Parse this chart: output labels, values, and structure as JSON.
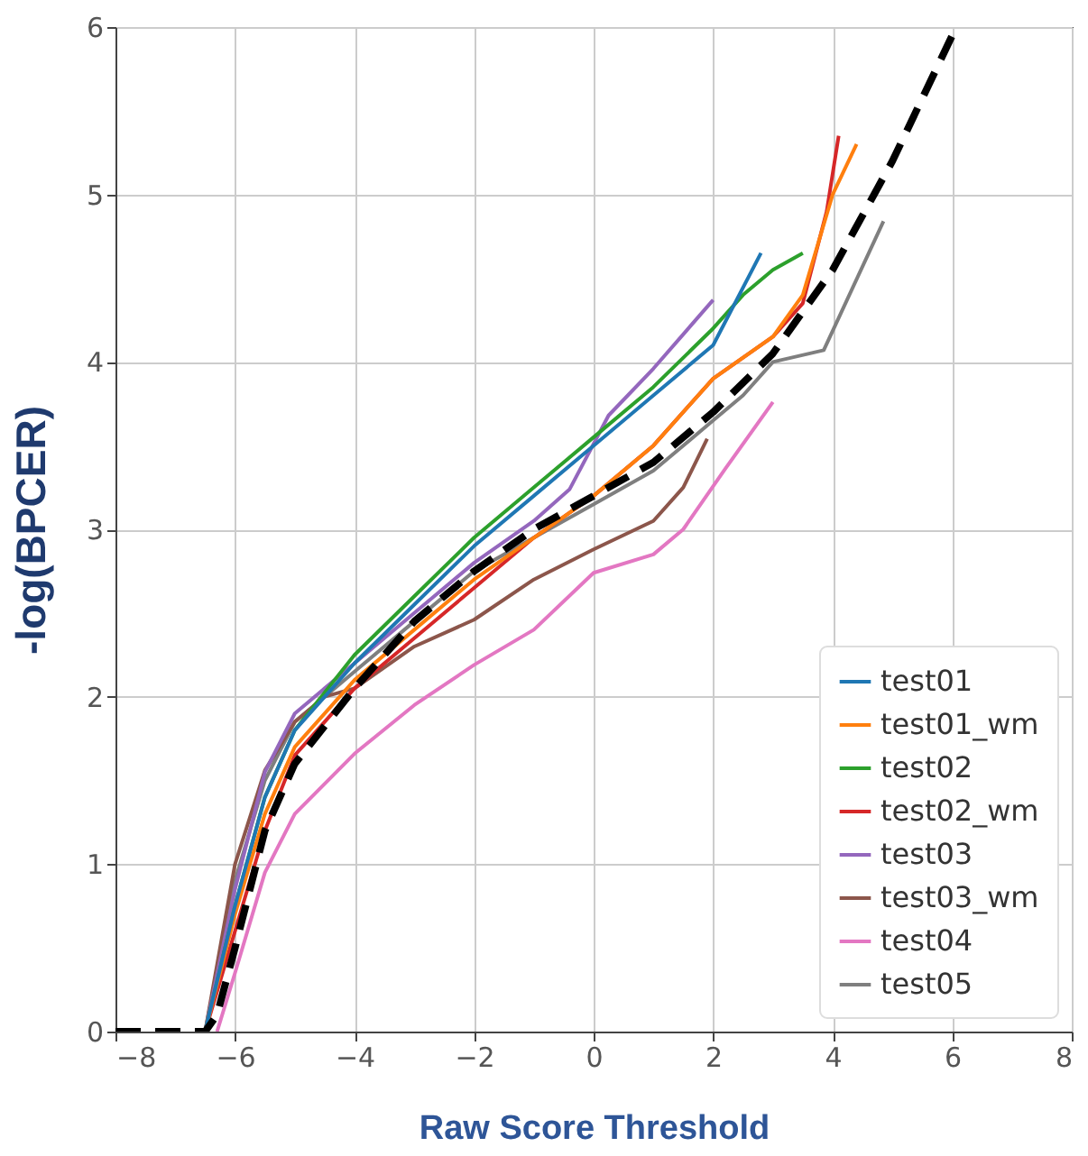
{
  "chart_data": {
    "type": "line",
    "xlabel": "Raw Score Threshold",
    "ylabel": "-log(BPCER)",
    "xlim": [
      -8,
      8
    ],
    "xticks": [
      -8,
      -6,
      -4,
      -2,
      0,
      2,
      4,
      6,
      8
    ],
    "ylim": [
      0,
      6
    ],
    "yticks": [
      0,
      1,
      2,
      3,
      4,
      5,
      6
    ],
    "grid": true,
    "legend": "bottom right",
    "marker": "none",
    "line_style": "solid",
    "series": [
      {
        "name": "test01",
        "color": "#1f77b4",
        "x": [
          -6.5,
          -6,
          -5.5,
          -5,
          -4,
          -3,
          -2,
          -1,
          0,
          1,
          2,
          2.8
        ],
        "values": [
          0,
          0.75,
          1.4,
          1.8,
          2.2,
          2.55,
          2.9,
          3.2,
          3.5,
          3.8,
          4.1,
          4.65
        ]
      },
      {
        "name": "test01_wm",
        "color": "#ff7f0e",
        "x": [
          -6.5,
          -6,
          -5.5,
          -5,
          -4,
          -3,
          -2,
          -1,
          0,
          1,
          2,
          3,
          3.5,
          4,
          4.4
        ],
        "values": [
          0,
          0.7,
          1.3,
          1.7,
          2.1,
          2.4,
          2.7,
          2.95,
          3.2,
          3.5,
          3.9,
          4.15,
          4.4,
          5.0,
          5.3
        ]
      },
      {
        "name": "test02",
        "color": "#2ca02c",
        "x": [
          -6.5,
          -6,
          -5.5,
          -5,
          -4,
          -3,
          -2,
          -1,
          0,
          1,
          2,
          2.5,
          3,
          3.5
        ],
        "values": [
          0,
          0.75,
          1.4,
          1.8,
          2.25,
          2.6,
          2.95,
          3.25,
          3.55,
          3.85,
          4.2,
          4.4,
          4.55,
          4.65
        ]
      },
      {
        "name": "test02_wm",
        "color": "#d62728",
        "x": [
          -6.5,
          -6,
          -5.5,
          -5,
          -4,
          -3,
          -2,
          -1,
          0,
          1,
          2,
          3,
          3.5,
          3.9,
          4.1
        ],
        "values": [
          0,
          0.6,
          1.2,
          1.65,
          2.05,
          2.35,
          2.65,
          2.95,
          3.2,
          3.5,
          3.9,
          4.15,
          4.35,
          4.9,
          5.35
        ]
      },
      {
        "name": "test03",
        "color": "#9467bd",
        "x": [
          -6.5,
          -6,
          -5.5,
          -5,
          -4.5,
          -4,
          -3,
          -2,
          -1,
          -0.4,
          0.25,
          1,
          2
        ],
        "values": [
          0,
          0.85,
          1.55,
          1.9,
          2.05,
          2.2,
          2.5,
          2.8,
          3.05,
          3.24,
          3.68,
          3.96,
          4.37
        ]
      },
      {
        "name": "test03_wm",
        "color": "#8c564b",
        "x": [
          -6.5,
          -6,
          -5.5,
          -5,
          -4.5,
          -4,
          -3,
          -2,
          -1,
          0,
          1,
          1.5,
          1.9
        ],
        "values": [
          0,
          1.0,
          1.56,
          1.85,
          2.0,
          2.05,
          2.3,
          2.46,
          2.7,
          2.88,
          3.05,
          3.25,
          3.54
        ]
      },
      {
        "name": "test04",
        "color": "#e377c2",
        "x": [
          -6.3,
          -6,
          -5.5,
          -5,
          -4,
          -3,
          -2,
          -1,
          0,
          1,
          1.5,
          2.2,
          3
        ],
        "values": [
          0,
          0.35,
          0.95,
          1.3,
          1.66,
          1.95,
          2.19,
          2.4,
          2.74,
          2.85,
          3.0,
          3.36,
          3.76
        ]
      },
      {
        "name": "test05",
        "color": "#7f7f7f",
        "x": [
          -6.5,
          -6,
          -5.5,
          -5,
          -4,
          -3,
          -2,
          -1,
          0,
          1,
          2,
          2.5,
          3,
          3.85,
          4.85
        ],
        "values": [
          0,
          0.9,
          1.5,
          1.85,
          2.15,
          2.45,
          2.75,
          2.95,
          3.15,
          3.35,
          3.65,
          3.8,
          4.0,
          4.07,
          4.84
        ]
      },
      {
        "color": "#000000",
        "line_style": "dashed",
        "x": [
          -8,
          -6.5,
          -6.3,
          -6,
          -5.5,
          -5,
          -4,
          -3,
          -2,
          -1,
          0,
          1,
          2,
          3,
          4,
          5,
          6
        ],
        "values": [
          0,
          0,
          0.1,
          0.5,
          1.2,
          1.6,
          2.05,
          2.45,
          2.75,
          3.0,
          3.2,
          3.4,
          3.7,
          4.05,
          4.55,
          5.2,
          5.95
        ]
      }
    ]
  }
}
